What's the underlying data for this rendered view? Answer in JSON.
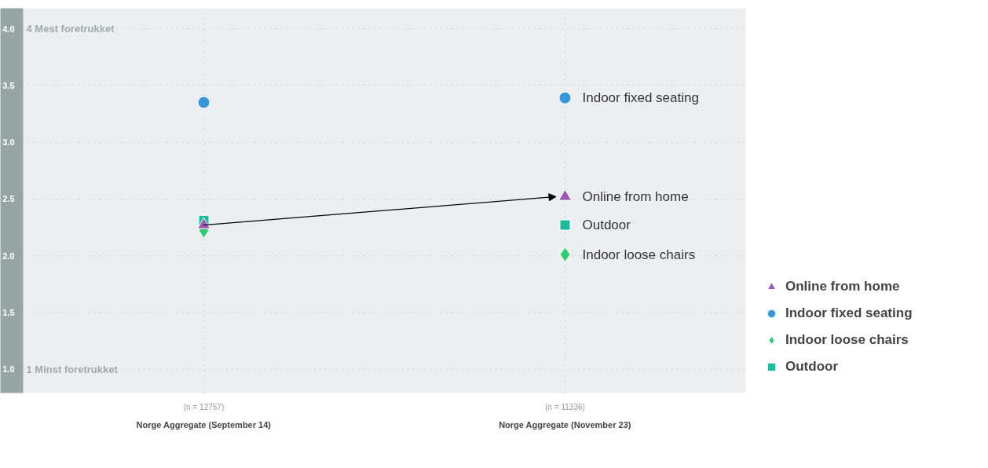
{
  "chart_data": {
    "type": "scatter",
    "categories": [
      "Norge Aggregate (September 14)",
      "Norge Aggregate (November 23)"
    ],
    "series": [
      {
        "name": "Online from home",
        "color": "#9b59b6",
        "marker": "triangle",
        "values": [
          2.27,
          2.52
        ]
      },
      {
        "name": "Indoor fixed seating",
        "color": "#3498db",
        "marker": "circle",
        "values": [
          3.35,
          3.39
        ]
      },
      {
        "name": "Indoor loose chairs",
        "color": "#2ecc71",
        "marker": "diamond",
        "values": [
          2.22,
          2.01
        ]
      },
      {
        "name": "Outdoor",
        "color": "#1abc9c",
        "marker": "square",
        "values": [
          2.31,
          2.27
        ]
      }
    ],
    "ylim": [
      0.79,
      4.18
    ],
    "yticks": [
      {
        "value": 1,
        "label": "1.0"
      },
      1.5,
      {
        "value": 2,
        "label": "2.0"
      },
      2.5,
      {
        "value": 3,
        "label": "3.0"
      },
      3.5,
      {
        "value": 4,
        "label": "4.0"
      }
    ],
    "annotations": [
      "4 Mest foretrukket",
      "1 Minst foretrukket",
      "(n = 12757)",
      "(n = 11336)"
    ],
    "grid": true,
    "legend": "right"
  }
}
